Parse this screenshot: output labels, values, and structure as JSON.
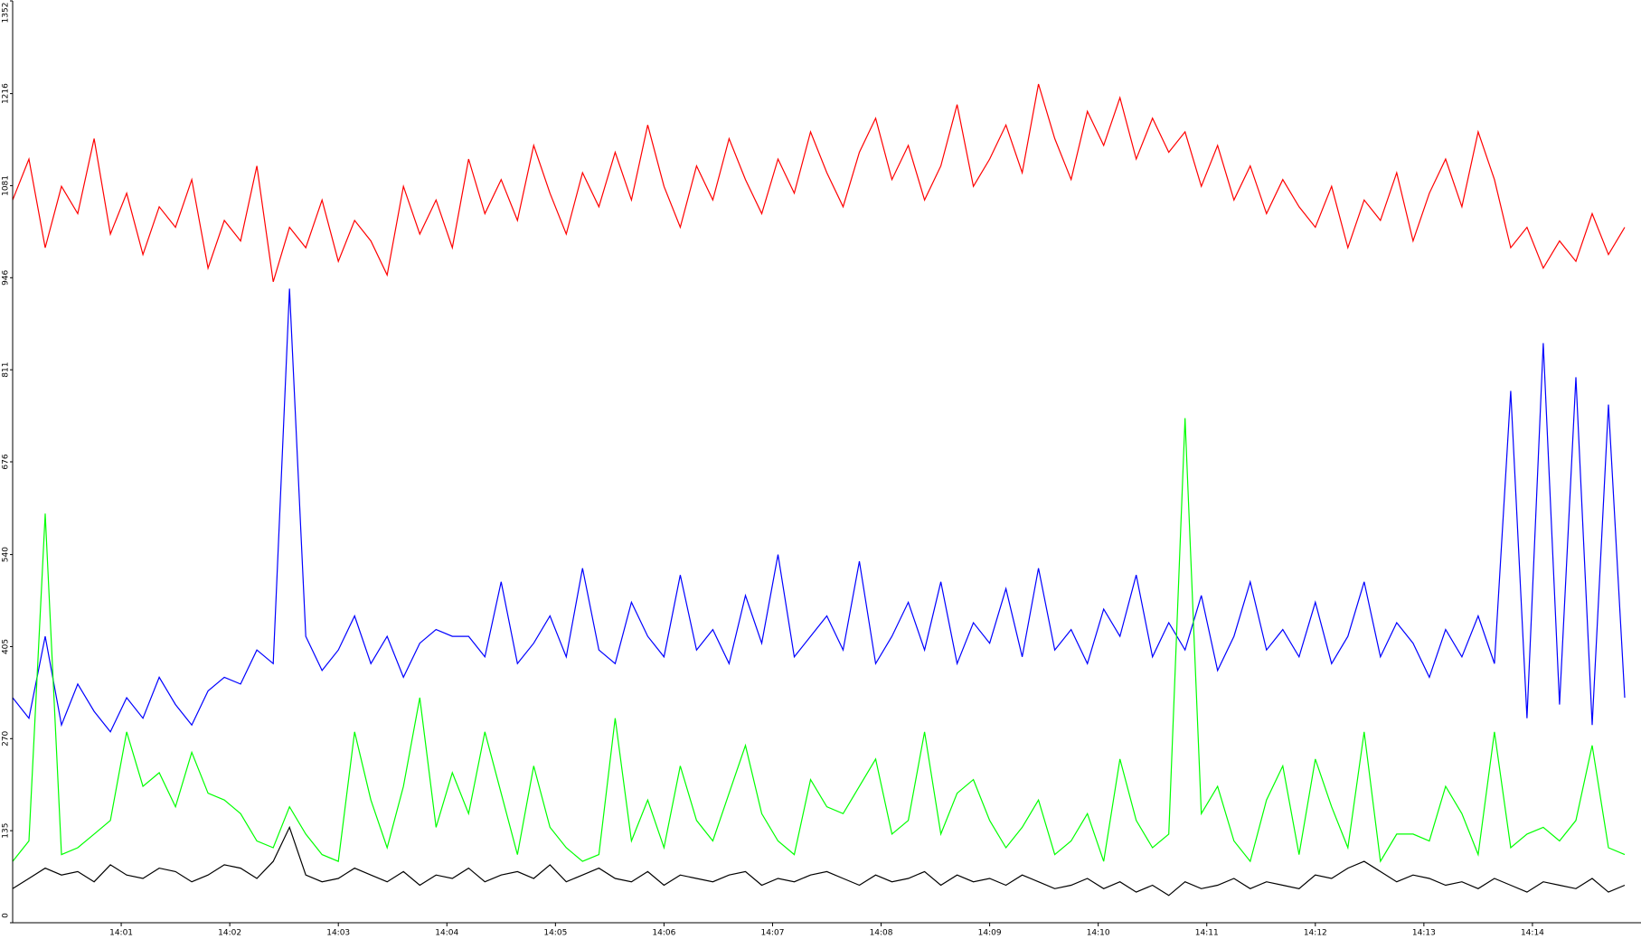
{
  "chart_data": {
    "type": "line",
    "x": [
      0,
      0.15,
      0.3,
      0.45,
      0.6,
      0.75,
      0.9,
      1.05,
      1.2,
      1.35,
      1.5,
      1.65,
      1.8,
      1.95,
      2.1,
      2.25,
      2.4,
      2.55,
      2.7,
      2.85,
      3,
      3.15,
      3.3,
      3.45,
      3.6,
      3.75,
      3.9,
      4.05,
      4.2,
      4.35,
      4.5,
      4.65,
      4.8,
      4.95,
      5.1,
      5.25,
      5.4,
      5.55,
      5.7,
      5.85,
      6,
      6.15,
      6.3,
      6.45,
      6.6,
      6.75,
      6.9,
      7.05,
      7.2,
      7.35,
      7.5,
      7.65,
      7.8,
      7.95,
      8.1,
      8.25,
      8.4,
      8.55,
      8.7,
      8.85,
      9,
      9.15,
      9.3,
      9.45,
      9.6,
      9.75,
      9.9,
      10.05,
      10.2,
      10.35,
      10.5,
      10.65,
      10.8,
      10.95,
      11.1,
      11.25,
      11.4,
      11.55,
      11.7,
      11.85,
      12,
      12.15,
      12.3,
      12.45,
      12.6,
      12.75,
      12.9,
      13.05,
      13.2,
      13.35,
      13.5,
      13.65,
      13.8,
      13.95,
      14.1,
      14.25,
      14.4,
      14.55,
      14.7,
      14.85
    ],
    "series": [
      {
        "color": "#ff0000",
        "values": [
          1060,
          1120,
          990,
          1080,
          1040,
          1150,
          1010,
          1070,
          980,
          1050,
          1020,
          1090,
          960,
          1030,
          1000,
          1110,
          940,
          1020,
          990,
          1060,
          970,
          1030,
          1000,
          950,
          1080,
          1010,
          1060,
          990,
          1120,
          1040,
          1090,
          1030,
          1140,
          1070,
          1010,
          1100,
          1050,
          1130,
          1060,
          1170,
          1080,
          1020,
          1110,
          1060,
          1150,
          1090,
          1040,
          1120,
          1070,
          1160,
          1100,
          1050,
          1130,
          1180,
          1090,
          1140,
          1060,
          1110,
          1200,
          1080,
          1120,
          1170,
          1100,
          1230,
          1150,
          1090,
          1190,
          1140,
          1210,
          1120,
          1180,
          1130,
          1160,
          1080,
          1140,
          1060,
          1110,
          1040,
          1090,
          1050,
          1020,
          1080,
          990,
          1060,
          1030,
          1100,
          1000,
          1070,
          1120,
          1050,
          1160,
          1090,
          990,
          1020,
          960,
          1000,
          970,
          1040,
          980,
          1020
        ]
      },
      {
        "color": "#0000ff",
        "values": [
          330,
          300,
          420,
          290,
          350,
          310,
          280,
          330,
          300,
          360,
          320,
          290,
          340,
          360,
          350,
          400,
          380,
          930,
          420,
          370,
          400,
          450,
          380,
          420,
          360,
          410,
          430,
          420,
          420,
          390,
          500,
          380,
          410,
          450,
          390,
          520,
          400,
          380,
          470,
          420,
          390,
          510,
          400,
          430,
          380,
          480,
          410,
          540,
          390,
          420,
          450,
          400,
          530,
          380,
          420,
          470,
          400,
          500,
          380,
          440,
          410,
          490,
          390,
          520,
          400,
          430,
          380,
          460,
          420,
          510,
          390,
          440,
          400,
          480,
          370,
          420,
          500,
          400,
          430,
          390,
          470,
          380,
          420,
          500,
          390,
          440,
          410,
          360,
          430,
          390,
          450,
          380,
          780,
          300,
          850,
          320,
          800,
          290,
          760,
          330
        ]
      },
      {
        "color": "#00ff00",
        "values": [
          90,
          120,
          600,
          100,
          110,
          130,
          150,
          280,
          200,
          220,
          170,
          250,
          190,
          180,
          160,
          120,
          110,
          170,
          130,
          100,
          90,
          280,
          180,
          110,
          200,
          330,
          140,
          220,
          160,
          280,
          190,
          100,
          230,
          140,
          110,
          90,
          100,
          300,
          120,
          180,
          110,
          230,
          150,
          120,
          190,
          260,
          160,
          120,
          100,
          210,
          170,
          160,
          200,
          240,
          130,
          150,
          280,
          130,
          190,
          210,
          150,
          110,
          140,
          180,
          100,
          120,
          160,
          90,
          240,
          150,
          110,
          130,
          740,
          160,
          200,
          120,
          90,
          180,
          230,
          100,
          240,
          170,
          110,
          280,
          90,
          130,
          130,
          120,
          200,
          160,
          100,
          280,
          110,
          130,
          140,
          120,
          150,
          260,
          110,
          100
        ]
      },
      {
        "color": "#000000",
        "values": [
          50,
          65,
          80,
          70,
          75,
          60,
          85,
          70,
          65,
          80,
          75,
          60,
          70,
          85,
          80,
          65,
          90,
          140,
          70,
          60,
          65,
          80,
          70,
          60,
          75,
          55,
          70,
          65,
          80,
          60,
          70,
          75,
          65,
          85,
          60,
          70,
          80,
          65,
          60,
          75,
          55,
          70,
          65,
          60,
          70,
          75,
          55,
          65,
          60,
          70,
          75,
          65,
          55,
          70,
          60,
          65,
          75,
          55,
          70,
          60,
          65,
          55,
          70,
          60,
          50,
          55,
          65,
          50,
          60,
          45,
          55,
          40,
          60,
          50,
          55,
          65,
          50,
          60,
          55,
          50,
          70,
          65,
          80,
          90,
          75,
          60,
          70,
          65,
          55,
          60,
          50,
          65,
          55,
          45,
          60,
          55,
          50,
          65,
          45,
          55
        ]
      }
    ],
    "xlim": [
      0,
      15
    ],
    "xticks": [
      {
        "value": 1,
        "label": "14:01"
      },
      {
        "value": 2,
        "label": "14:02"
      },
      {
        "value": 3,
        "label": "14:03"
      },
      {
        "value": 4,
        "label": "14:04"
      },
      {
        "value": 5,
        "label": "14:05"
      },
      {
        "value": 6,
        "label": "14:06"
      },
      {
        "value": 7,
        "label": "14:07"
      },
      {
        "value": 8,
        "label": "14:08"
      },
      {
        "value": 9,
        "label": "14:09"
      },
      {
        "value": 10,
        "label": "14:10"
      },
      {
        "value": 11,
        "label": "14:11"
      },
      {
        "value": 12,
        "label": "14:12"
      },
      {
        "value": 13,
        "label": "14:13"
      },
      {
        "value": 14,
        "label": "14:14"
      }
    ],
    "ylim": [
      0,
      1352
    ],
    "yticks": [
      0,
      135,
      270,
      405,
      540,
      676,
      811,
      946,
      1081,
      1216,
      1352
    ],
    "grid": false
  }
}
